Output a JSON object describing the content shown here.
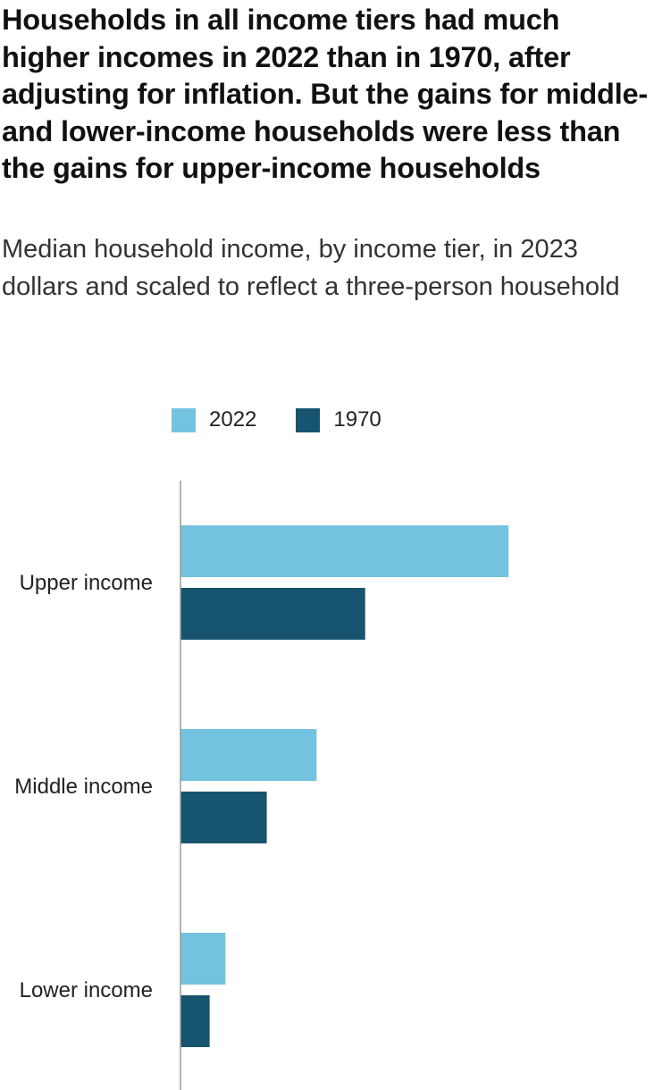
{
  "title": "Households in all income tiers had much higher incomes in 2022 than in 1970, after adjusting for inflation. But the gains for middle- and lower-income households were less than the gains for upper-income households",
  "subtitle": "Median household income, by income tier, in 2023 dollars and scaled to reflect a three-person household",
  "colors": {
    "2022": "#73c2e0",
    "1970": "#17546f",
    "axis": "#9a9a9a"
  },
  "chart_data": {
    "type": "bar",
    "orientation": "horizontal",
    "categories": [
      "Upper income",
      "Middle income",
      "Lower income"
    ],
    "series": [
      {
        "name": "2022",
        "values": [
          270000,
          112000,
          37000
        ]
      },
      {
        "name": "1970",
        "values": [
          152000,
          71000,
          24000
        ]
      }
    ],
    "legend_placement": "top",
    "grid": false,
    "xlim": [
      0,
      300000
    ]
  }
}
